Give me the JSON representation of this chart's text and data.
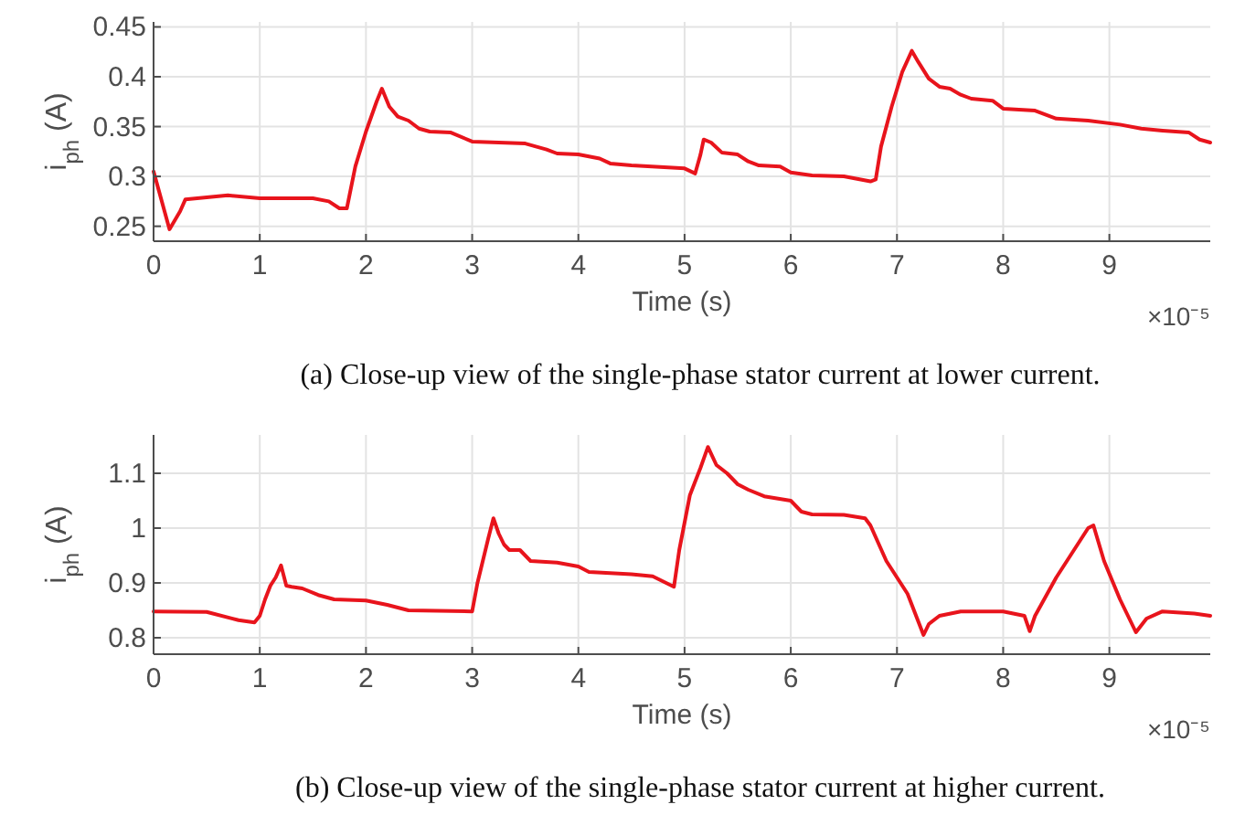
{
  "chart_data": [
    {
      "type": "line",
      "xlabel": "Time (s)",
      "ylabel": "i$_{ph}$ (A)",
      "xlim": [
        0,
        9.95
      ],
      "xticks": [
        0,
        1,
        2,
        3,
        4,
        5,
        6,
        7,
        8,
        9
      ],
      "ylim": [
        0.235,
        0.455
      ],
      "yticks": [
        0.25,
        0.3,
        0.35,
        0.4,
        0.45
      ],
      "grid": true,
      "annotations": [
        "×10⁻⁵",
        "(a) Close-up view of the single-phase stator current at lower current."
      ],
      "series": [
        {
          "color": "#e8141c",
          "x": [
            0,
            0.15,
            0.25,
            0.3,
            0.7,
            1,
            1.5,
            1.65,
            1.75,
            1.82,
            1.9,
            2.0,
            2.1,
            2.15,
            2.22,
            2.3,
            2.4,
            2.5,
            2.6,
            2.8,
            3.0,
            3.5,
            3.7,
            3.8,
            4.0,
            4.2,
            4.3,
            4.5,
            5.0,
            5.1,
            5.15,
            5.18,
            5.25,
            5.35,
            5.5,
            5.6,
            5.7,
            5.9,
            6.0,
            6.2,
            6.5,
            6.75,
            6.8,
            6.85,
            6.95,
            7.05,
            7.14,
            7.2,
            7.3,
            7.4,
            7.5,
            7.6,
            7.7,
            7.9,
            8.0,
            8.3,
            8.5,
            8.8,
            9.1,
            9.3,
            9.5,
            9.75,
            9.85,
            9.95
          ],
          "values": [
            0.305,
            0.247,
            0.265,
            0.277,
            0.281,
            0.278,
            0.278,
            0.275,
            0.268,
            0.268,
            0.31,
            0.345,
            0.375,
            0.388,
            0.37,
            0.36,
            0.356,
            0.348,
            0.345,
            0.344,
            0.335,
            0.333,
            0.327,
            0.323,
            0.322,
            0.318,
            0.313,
            0.311,
            0.308,
            0.303,
            0.322,
            0.337,
            0.334,
            0.324,
            0.322,
            0.315,
            0.311,
            0.31,
            0.304,
            0.301,
            0.3,
            0.295,
            0.297,
            0.33,
            0.37,
            0.405,
            0.426,
            0.415,
            0.398,
            0.39,
            0.388,
            0.382,
            0.378,
            0.376,
            0.368,
            0.366,
            0.358,
            0.356,
            0.352,
            0.348,
            0.346,
            0.344,
            0.337,
            0.334
          ]
        }
      ]
    },
    {
      "type": "line",
      "xlabel": "Time (s)",
      "ylabel": "i$_{ph}$ (A)",
      "xlim": [
        0,
        9.95
      ],
      "xticks": [
        0,
        1,
        2,
        3,
        4,
        5,
        6,
        7,
        8,
        9
      ],
      "ylim": [
        0.77,
        1.17
      ],
      "yticks": [
        0.8,
        0.9,
        1,
        1.1
      ],
      "grid": true,
      "annotations": [
        "×10⁻⁵",
        "(b) Close-up view of the single-phase stator current at higher current."
      ],
      "series": [
        {
          "color": "#e8141c",
          "x": [
            0,
            0.5,
            0.8,
            0.95,
            1.0,
            1.05,
            1.1,
            1.15,
            1.2,
            1.25,
            1.3,
            1.4,
            1.55,
            1.7,
            2.0,
            2.2,
            2.4,
            3.0,
            3.05,
            3.15,
            3.2,
            3.25,
            3.3,
            3.35,
            3.45,
            3.55,
            3.8,
            4.0,
            4.1,
            4.5,
            4.7,
            4.9,
            4.95,
            5.05,
            5.15,
            5.22,
            5.3,
            5.4,
            5.5,
            5.6,
            5.75,
            6.0,
            6.1,
            6.2,
            6.5,
            6.7,
            6.75,
            6.9,
            7.1,
            7.2,
            7.25,
            7.3,
            7.4,
            7.6,
            8.0,
            8.2,
            8.25,
            8.3,
            8.5,
            8.7,
            8.8,
            8.85,
            8.95,
            9.1,
            9.2,
            9.25,
            9.35,
            9.5,
            9.8,
            9.95
          ],
          "values": [
            0.848,
            0.847,
            0.832,
            0.828,
            0.84,
            0.87,
            0.895,
            0.91,
            0.932,
            0.895,
            0.893,
            0.89,
            0.878,
            0.87,
            0.868,
            0.86,
            0.85,
            0.848,
            0.9,
            0.98,
            1.018,
            0.99,
            0.97,
            0.96,
            0.96,
            0.94,
            0.937,
            0.93,
            0.92,
            0.916,
            0.912,
            0.893,
            0.96,
            1.06,
            1.11,
            1.148,
            1.115,
            1.1,
            1.08,
            1.07,
            1.058,
            1.05,
            1.03,
            1.025,
            1.024,
            1.018,
            1.005,
            0.94,
            0.88,
            0.83,
            0.805,
            0.825,
            0.84,
            0.848,
            0.848,
            0.84,
            0.812,
            0.84,
            0.91,
            0.97,
            1.0,
            1.005,
            0.94,
            0.87,
            0.83,
            0.81,
            0.835,
            0.848,
            0.844,
            0.84
          ]
        }
      ]
    }
  ]
}
